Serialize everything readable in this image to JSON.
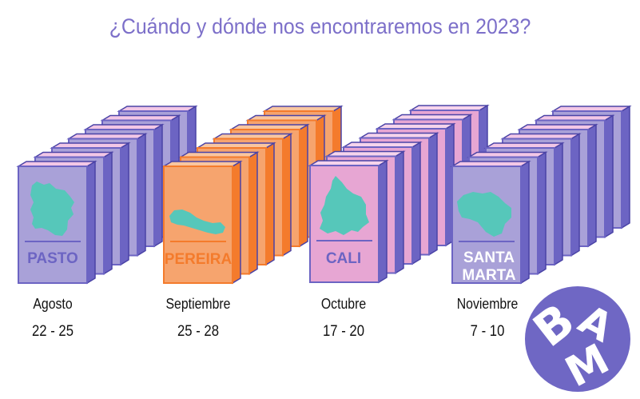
{
  "title": "¿Cuándo y dónde nos encontraremos en 2023?",
  "colors": {
    "title": "#7c6fc9",
    "lavender": "#a9a1d8",
    "lavender_dark": "#6c64c3",
    "pink": "#e7a6d3",
    "orange": "#f6a46e",
    "orange_dark": "#f47b2c",
    "map_fill": "#56c7ba",
    "logo_circle": "#6f67c4"
  },
  "events": [
    {
      "city": "PASTO",
      "city_line2": "",
      "month": "Agosto",
      "dates": "22 - 25",
      "theme": "lavender",
      "map_icon": "pasto-map-icon"
    },
    {
      "city": "PEREIRA",
      "city_line2": "",
      "month": "Septiembre",
      "dates": "25 - 28",
      "theme": "orange",
      "map_icon": "pereira-map-icon"
    },
    {
      "city": "CALI",
      "city_line2": "",
      "month": "Octubre",
      "dates": "17 - 20",
      "theme": "pink",
      "map_icon": "cali-map-icon"
    },
    {
      "city": "SANTA",
      "city_line2": "MARTA",
      "month": "Noviembre",
      "dates": "7 - 10",
      "theme": "lavender",
      "map_icon": "santa-marta-map-icon"
    }
  ],
  "logo": {
    "text": "BAM",
    "icon": "bam-logo-icon"
  }
}
